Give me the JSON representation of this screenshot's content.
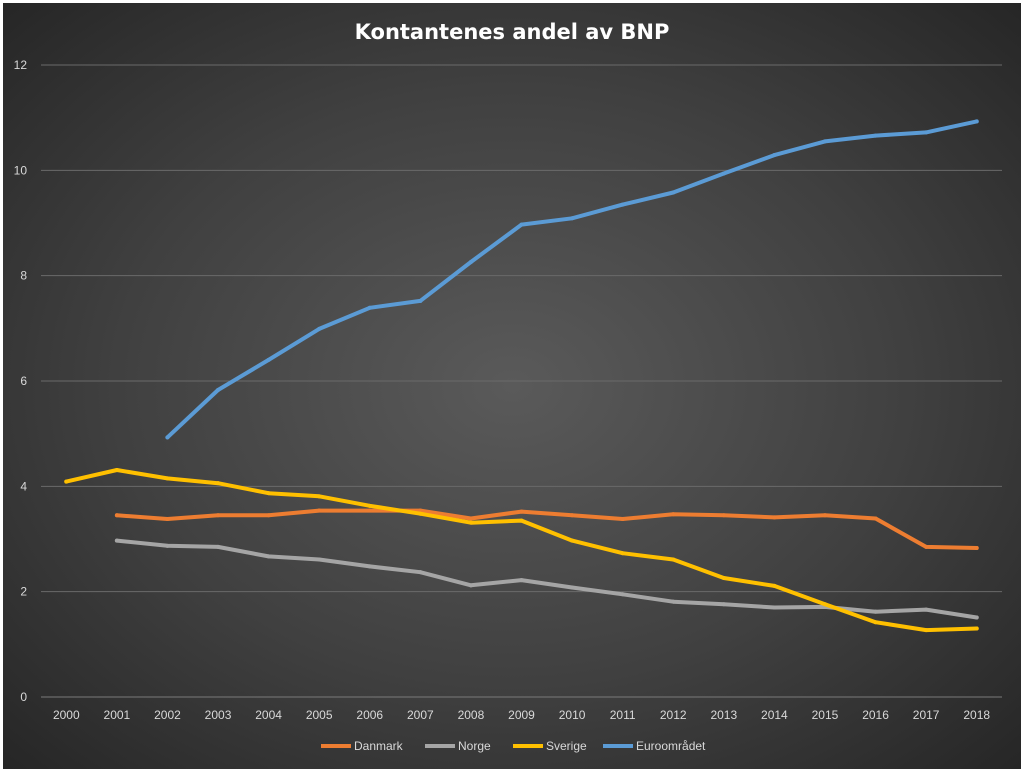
{
  "chart_data": {
    "type": "line",
    "title": "Kontantenes andel av BNP",
    "xlabel": "",
    "ylabel": "",
    "ylim": [
      0,
      12
    ],
    "yticks": [
      0,
      2,
      4,
      6,
      8,
      10,
      12
    ],
    "grid": true,
    "legend": "bottom",
    "categories": [
      "2000",
      "2001",
      "2002",
      "2003",
      "2004",
      "2005",
      "2006",
      "2007",
      "2008",
      "2009",
      "2010",
      "2011",
      "2012",
      "2013",
      "2014",
      "2015",
      "2016",
      "2017",
      "2018"
    ],
    "series": [
      {
        "name": "Danmark",
        "color": "#ed7d31",
        "values": [
          null,
          3.45,
          3.38,
          3.45,
          3.45,
          3.54,
          3.54,
          3.54,
          3.39,
          3.52,
          3.45,
          3.38,
          3.47,
          3.45,
          3.41,
          3.45,
          3.39,
          2.85,
          2.83
        ]
      },
      {
        "name": "Norge",
        "color": "#a5a5a5",
        "values": [
          null,
          2.97,
          2.87,
          2.85,
          2.67,
          2.61,
          2.48,
          2.37,
          2.12,
          2.22,
          2.08,
          1.95,
          1.81,
          1.76,
          1.7,
          1.71,
          1.62,
          1.66,
          1.51
        ]
      },
      {
        "name": "Sverige",
        "color": "#ffc000",
        "values": [
          4.09,
          4.31,
          4.15,
          4.06,
          3.87,
          3.81,
          3.63,
          3.48,
          3.31,
          3.35,
          2.97,
          2.73,
          2.61,
          2.26,
          2.11,
          1.76,
          1.42,
          1.27,
          1.3
        ]
      },
      {
        "name": "Euroområdet",
        "color": "#5b9bd5",
        "values": [
          null,
          null,
          4.93,
          5.83,
          6.4,
          6.99,
          7.39,
          7.52,
          8.26,
          8.97,
          9.09,
          9.35,
          9.58,
          9.94,
          10.29,
          10.55,
          10.66,
          10.72,
          10.93
        ]
      }
    ]
  }
}
